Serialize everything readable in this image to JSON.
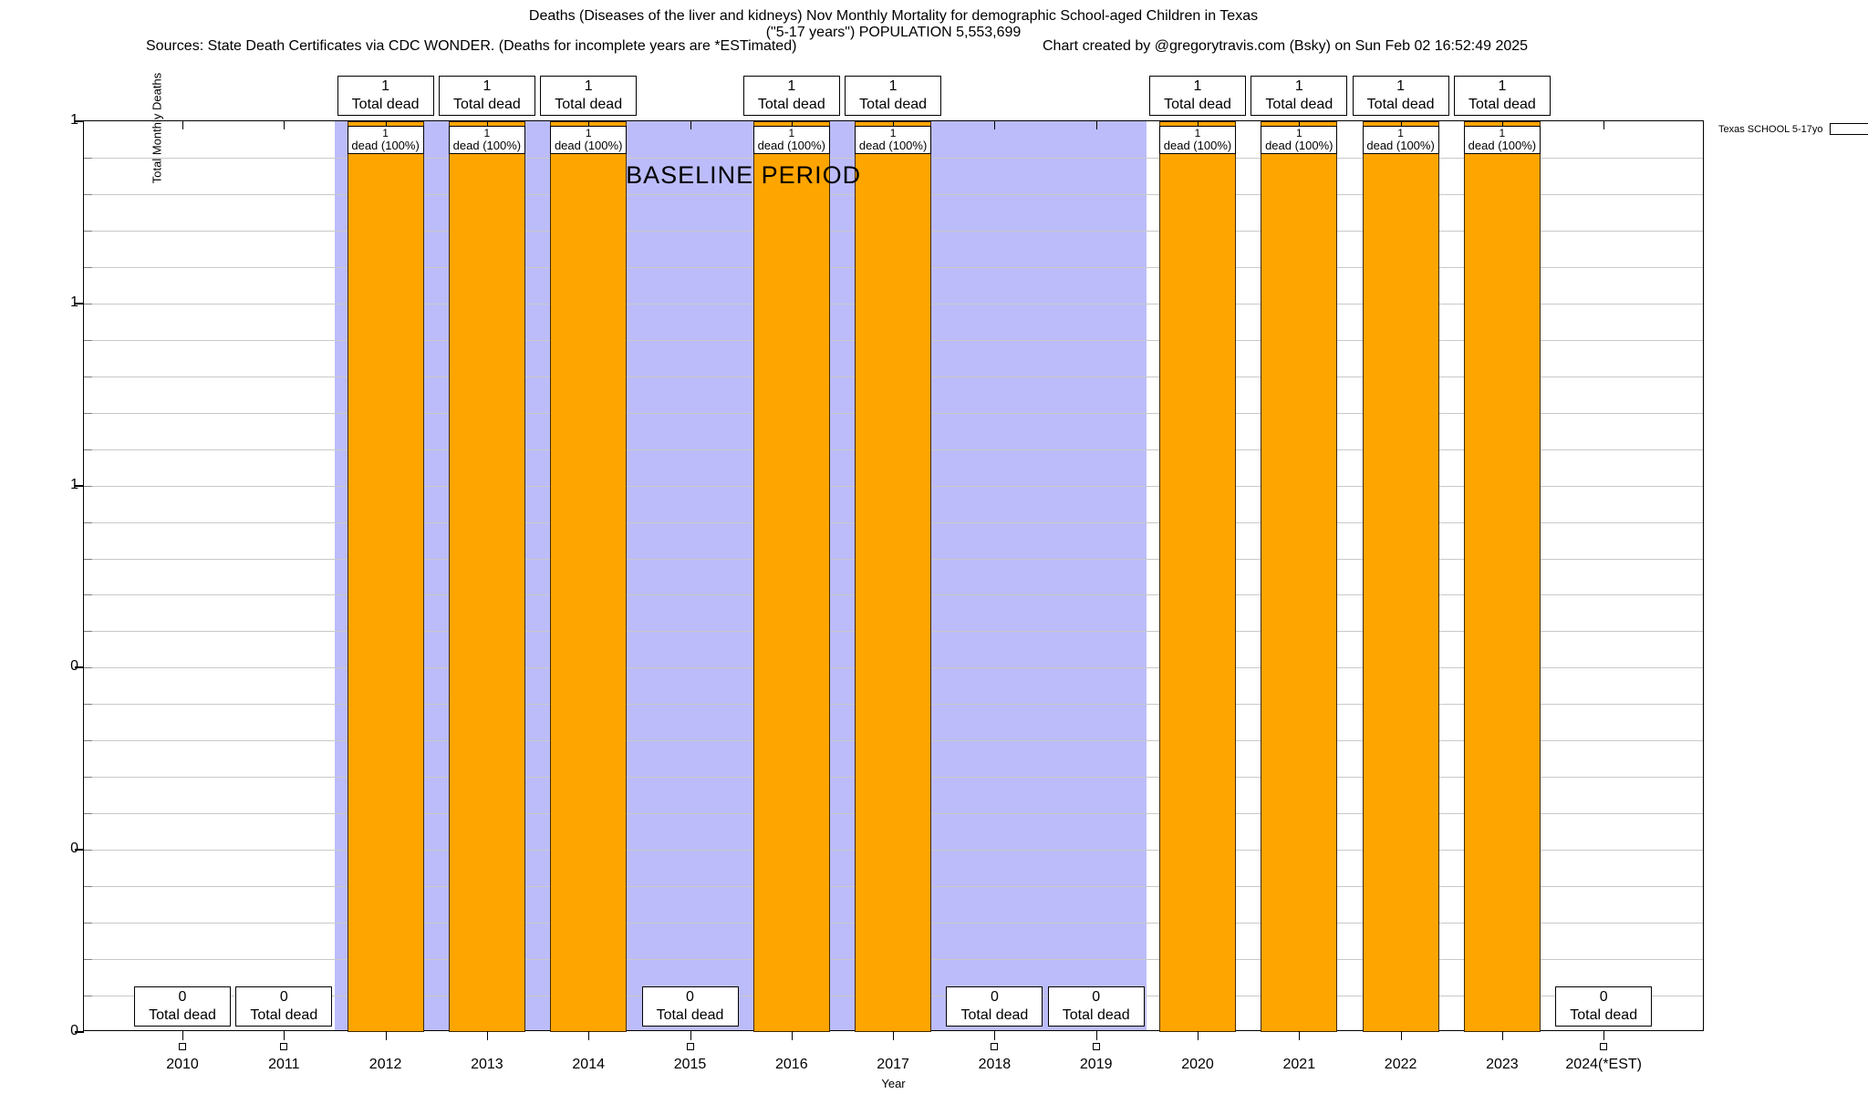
{
  "header": {
    "title_line1": "Deaths (Diseases of the liver and kidneys) Nov Monthly Mortality for demographic School-aged Children in Texas",
    "title_line2": "(\"5-17 years\") POPULATION 5,553,699",
    "sources_left": "Sources: State Death Certificates via CDC WONDER. (Deaths for incomplete years are *ESTimated)",
    "credit_right": "Chart created by @gregorytravis.com (Bsky) on Sun Feb 02 16:52:49 2025"
  },
  "legend": {
    "label": "Texas SCHOOL 5-17yo"
  },
  "axes": {
    "ylabel": "Total Monthly Deaths",
    "xlabel": "Year",
    "y_tick_labels": [
      "1",
      "1",
      "1",
      "0",
      "0",
      "0"
    ]
  },
  "labels": {
    "total_dead": "Total dead",
    "dead_pct": "dead (100%)"
  },
  "colors": {
    "bar": "#FFA500",
    "baseline_band": "#BCBCFA",
    "grid": "#C9C9C9"
  },
  "chart_data": {
    "type": "bar",
    "title": "Deaths (Diseases of the liver and kidneys) Nov Monthly Mortality for demographic School-aged Children in Texas (\"5-17 years\") POPULATION 5,553,699",
    "xlabel": "Year",
    "ylabel": "Total Monthly Deaths",
    "ylim": [
      0,
      1
    ],
    "grid": true,
    "legend_position": "top-right-outside",
    "categories": [
      "2010",
      "2011",
      "2012",
      "2013",
      "2014",
      "2015",
      "2016",
      "2017",
      "2018",
      "2019",
      "2020",
      "2021",
      "2022",
      "2023",
      "2024(*EST)"
    ],
    "series": [
      {
        "name": "Texas SCHOOL 5-17yo",
        "values": [
          0,
          0,
          1,
          1,
          1,
          0,
          1,
          1,
          0,
          0,
          1,
          1,
          1,
          1,
          0
        ]
      }
    ],
    "bar_value_boxes": {
      "nonzero_top_line1": "1",
      "nonzero_top_line2": "Total dead",
      "nonzero_inner_line1": "1",
      "nonzero_inner_line2": "dead (100%)",
      "zero_line1": "0",
      "zero_line2": "Total dead"
    },
    "baseline_period": {
      "from": "2012",
      "to": "2019",
      "label": "BASELINE PERIOD"
    }
  }
}
